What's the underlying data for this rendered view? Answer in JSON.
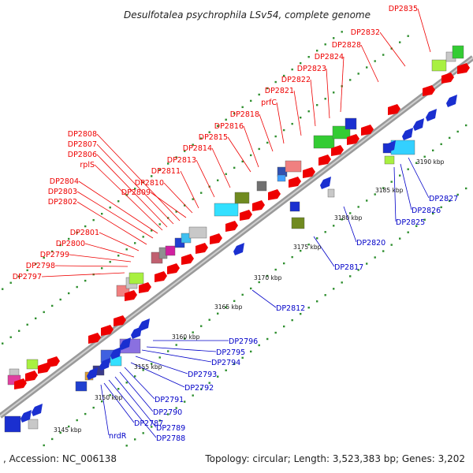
{
  "title": "Desulfotalea psychrophila LSv54, complete genome",
  "footer": {
    "accession": ", Accession: NC_006138",
    "topology": "Topology: circular; Length: 3,523,383 bp; Genes: 3,202"
  },
  "colors": {
    "forward_label": "#e00000",
    "reverse_label": "#0000c8",
    "backbone": "#9a9a9a",
    "tick": "#2a9a2a"
  },
  "scale_ticks": [
    "3145 kbp",
    "3150 kbp",
    "3155 kbp",
    "3160 kbp",
    "3165 kbp",
    "3170 kbp",
    "3175 kbp",
    "3180 kbp",
    "3185 kbp",
    "3190 kbp"
  ],
  "forward_genes": [
    "DP2797",
    "DP2798",
    "DP2799",
    "DP2800",
    "DP2801",
    "DP2802",
    "DP2803",
    "DP2804",
    "rplS",
    "DP2806",
    "DP2807",
    "DP2808",
    "DP2809",
    "DP2810",
    "DP2811",
    "DP2813",
    "DP2814",
    "DP2815",
    "DP2816",
    "DP2818",
    "prfC",
    "DP2821",
    "DP2822",
    "DP2823",
    "DP2824",
    "DP2828",
    "DP2832",
    "DP2835"
  ],
  "reverse_genes": [
    "nrdR",
    "DP2787",
    "DP2788",
    "DP2789",
    "DP2790",
    "DP2791",
    "DP2792",
    "DP2793",
    "DP2794",
    "DP2795",
    "DP2796",
    "DP2812",
    "DP2817",
    "DP2820",
    "DP2825",
    "DP2826",
    "DP2827"
  ]
}
